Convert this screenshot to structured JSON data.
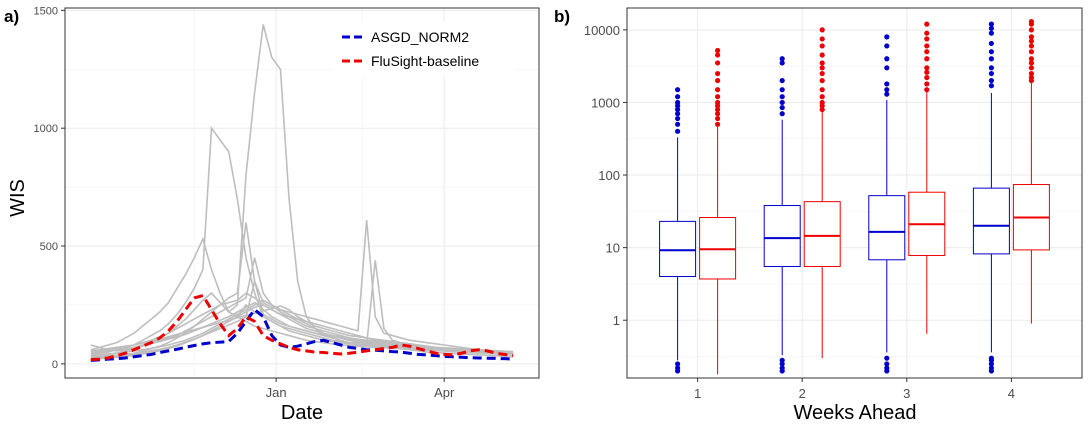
{
  "chart_data": [
    {
      "panel": "a)",
      "type": "line",
      "xlabel": "Date",
      "ylabel": "WIS",
      "x_ticks": [
        "Jan",
        "Apr"
      ],
      "y_ticks": [
        0,
        500,
        1000,
        1500
      ],
      "ylim": [
        -60,
        1510
      ],
      "grid": true,
      "legend_position": "top-right",
      "x": [
        1,
        2,
        3,
        4,
        5,
        6,
        7,
        8,
        9,
        10,
        11,
        12,
        13,
        14,
        15,
        16,
        17,
        18,
        19,
        20,
        21,
        22,
        23,
        24,
        25,
        26,
        27,
        28,
        29,
        30,
        31,
        32,
        33,
        34,
        35,
        36,
        37,
        38,
        39,
        40,
        41,
        42,
        43,
        44,
        45,
        46,
        47,
        48,
        49,
        50
      ],
      "x_tick_positions": [
        22.5,
        42
      ],
      "series": [
        {
          "name": "ASGD_NORM2",
          "color": "#0000cc",
          "style": "dashed",
          "values": [
            15,
            17,
            20,
            22,
            25,
            30,
            35,
            40,
            48,
            55,
            62,
            70,
            78,
            85,
            90,
            92,
            95,
            130,
            180,
            230,
            200,
            120,
            80,
            70,
            75,
            85,
            95,
            100,
            90,
            80,
            70,
            65,
            60,
            58,
            55,
            52,
            50,
            45,
            40,
            38,
            35,
            32,
            30,
            28,
            26,
            25,
            24,
            23,
            22,
            20
          ]
        },
        {
          "name": "FluSight-baseline",
          "color": "#ee0000",
          "style": "dashed",
          "values": [
            18,
            20,
            25,
            35,
            45,
            60,
            75,
            90,
            110,
            140,
            180,
            230,
            280,
            290,
            230,
            170,
            120,
            150,
            200,
            180,
            120,
            100,
            85,
            70,
            60,
            55,
            50,
            48,
            45,
            42,
            45,
            50,
            55,
            60,
            65,
            70,
            80,
            75,
            65,
            55,
            45,
            40,
            38,
            45,
            55,
            60,
            55,
            45,
            40,
            35
          ]
        }
      ],
      "background_series": [
        [
          60,
          70,
          80,
          90,
          110,
          130,
          160,
          190,
          220,
          260,
          320,
          380,
          450,
          530,
          400,
          300,
          220,
          200,
          180,
          160,
          150,
          140,
          130,
          120,
          110,
          100,
          95,
          90,
          85,
          80,
          78,
          75,
          72,
          70,
          68,
          66,
          64,
          62,
          60,
          58,
          56,
          55,
          54,
          53,
          52,
          51,
          50,
          49,
          48,
          47
        ],
        [
          40,
          45,
          50,
          60,
          70,
          80,
          100,
          120,
          140,
          170,
          210,
          260,
          320,
          400,
          1000,
          950,
          900,
          700,
          450,
          300,
          200,
          180,
          160,
          140,
          130,
          120,
          110,
          100,
          95,
          90,
          85,
          80,
          78,
          76,
          74,
          72,
          70,
          68,
          66,
          64,
          62,
          60,
          58,
          56,
          55,
          54,
          53,
          52,
          51,
          50
        ],
        [
          30,
          35,
          40,
          45,
          55,
          65,
          75,
          90,
          110,
          130,
          160,
          190,
          230,
          270,
          300,
          260,
          220,
          250,
          800,
          1150,
          1440,
          1300,
          1250,
          700,
          350,
          200,
          150,
          120,
          110,
          100,
          90,
          85,
          80,
          78,
          75,
          72,
          70,
          68,
          66,
          64,
          62,
          60,
          58,
          56,
          54,
          52,
          50,
          48,
          46,
          45
        ],
        [
          25,
          28,
          32,
          36,
          40,
          45,
          55,
          65,
          75,
          90,
          110,
          130,
          160,
          190,
          220,
          250,
          280,
          300,
          600,
          350,
          260,
          240,
          230,
          220,
          210,
          200,
          190,
          180,
          170,
          160,
          150,
          140,
          610,
          200,
          130,
          120,
          110,
          100,
          95,
          90,
          85,
          80,
          75,
          70,
          65,
          60,
          55,
          50,
          48,
          46
        ],
        [
          20,
          22,
          25,
          28,
          32,
          36,
          42,
          48,
          55,
          65,
          75,
          90,
          105,
          120,
          140,
          160,
          180,
          200,
          250,
          220,
          200,
          180,
          160,
          150,
          140,
          130,
          120,
          110,
          100,
          95,
          90,
          85,
          80,
          440,
          150,
          100,
          90,
          85,
          80,
          75,
          70,
          65,
          60,
          58,
          56,
          54,
          52,
          50,
          48,
          46
        ],
        [
          50,
          55,
          60,
          65,
          70,
          80,
          90,
          100,
          115,
          130,
          150,
          170,
          190,
          210,
          230,
          250,
          260,
          270,
          300,
          280,
          250,
          230,
          210,
          200,
          190,
          180,
          170,
          160,
          150,
          140,
          130,
          120,
          110,
          100,
          95,
          90,
          85,
          80,
          75,
          70,
          65,
          60,
          58,
          56,
          54,
          52,
          50,
          48,
          46,
          44
        ],
        [
          35,
          38,
          42,
          46,
          50,
          55,
          60,
          66,
          72,
          80,
          90,
          100,
          115,
          130,
          150,
          170,
          190,
          210,
          230,
          250,
          270,
          250,
          230,
          210,
          190,
          170,
          150,
          130,
          120,
          110,
          100,
          95,
          90,
          85,
          80,
          75,
          70,
          68,
          66,
          64,
          62,
          60,
          58,
          56,
          54,
          52,
          50,
          48,
          46,
          44
        ],
        [
          45,
          50,
          55,
          60,
          65,
          70,
          78,
          86,
          95,
          105,
          115,
          125,
          140,
          155,
          170,
          185,
          200,
          220,
          240,
          260,
          230,
          200,
          180,
          160,
          150,
          140,
          130,
          120,
          115,
          110,
          105,
          100,
          95,
          90,
          85,
          80,
          78,
          76,
          74,
          72,
          70,
          68,
          66,
          64,
          62,
          60,
          58,
          56,
          54,
          52
        ],
        [
          28,
          30,
          33,
          36,
          40,
          44,
          50,
          56,
          62,
          70,
          80,
          92,
          105,
          120,
          135,
          150,
          165,
          180,
          200,
          350,
          210,
          190,
          170,
          160,
          150,
          140,
          130,
          125,
          120,
          115,
          110,
          105,
          100,
          95,
          90,
          85,
          80,
          75,
          70,
          65,
          60,
          55,
          52,
          50,
          48,
          46,
          44,
          42,
          40,
          38
        ],
        [
          80,
          70,
          60,
          55,
          60,
          70,
          80,
          90,
          100,
          110,
          120,
          140,
          160,
          180,
          200,
          220,
          240,
          260,
          280,
          450,
          300,
          250,
          220,
          200,
          180,
          160,
          150,
          140,
          130,
          120,
          110,
          100,
          95,
          90,
          85,
          80,
          75,
          70,
          65,
          60,
          58,
          56,
          54,
          52,
          50,
          48,
          46,
          44,
          42,
          40
        ],
        [
          22,
          25,
          28,
          32,
          36,
          40,
          46,
          52,
          60,
          68,
          78,
          90,
          104,
          120,
          140,
          160,
          180,
          200,
          220,
          240,
          250,
          230,
          210,
          190,
          170,
          150,
          140,
          130,
          120,
          110,
          100,
          90,
          85,
          80,
          75,
          70,
          65,
          60,
          55,
          50,
          48,
          46,
          44,
          42,
          40,
          38,
          36,
          34,
          32,
          30
        ],
        [
          55,
          60,
          65,
          70,
          75,
          80,
          88,
          96,
          105,
          115,
          125,
          135,
          145,
          155,
          165,
          175,
          185,
          195,
          205,
          215,
          225,
          235,
          245,
          230,
          200,
          180,
          160,
          150,
          140,
          130,
          120,
          115,
          110,
          105,
          100,
          95,
          90,
          85,
          80,
          75,
          70,
          65,
          60,
          55,
          50,
          48,
          46,
          44,
          42,
          40
        ]
      ]
    },
    {
      "panel": "b)",
      "type": "box",
      "xlabel": "Weeks Ahead",
      "ylabel": "",
      "categories": [
        "1",
        "2",
        "3",
        "4"
      ],
      "y_scale": "log10",
      "y_ticks": [
        1,
        10,
        100,
        1000,
        10000
      ],
      "y_tick_labels": [
        "1",
        "10",
        "100",
        "1000",
        "10000"
      ],
      "ylim": [
        0.16,
        20000
      ],
      "grid": true,
      "series": [
        {
          "name": "ASGD_NORM2",
          "color": "#0000cc",
          "boxes": [
            {
              "q1": 4.0,
              "median": 9.2,
              "q3": 23,
              "whisker_low": 0.28,
              "whisker_high": 330,
              "outliers_low": [
                0.2,
                0.22,
                0.25
              ],
              "outliers_high": [
                400,
                500,
                600,
                700,
                800,
                900,
                1000,
                1200,
                1500
              ]
            },
            {
              "q1": 5.5,
              "median": 13.5,
              "q3": 38,
              "whisker_low": 0.33,
              "whisker_high": 580,
              "outliers_low": [
                0.2,
                0.22,
                0.25,
                0.28
              ],
              "outliers_high": [
                700,
                850,
                1000,
                1200,
                1500,
                2000,
                3500,
                4000
              ]
            },
            {
              "q1": 6.8,
              "median": 16.5,
              "q3": 52,
              "whisker_low": 0.36,
              "whisker_high": 1080,
              "outliers_low": [
                0.2,
                0.22,
                0.25,
                0.3
              ],
              "outliers_high": [
                1300,
                1500,
                1800,
                3000,
                4000,
                6000,
                8000
              ]
            },
            {
              "q1": 8.2,
              "median": 20,
              "q3": 66,
              "whisker_low": 0.36,
              "whisker_high": 1350,
              "outliers_low": [
                0.2,
                0.22,
                0.25,
                0.28,
                0.3
              ],
              "outliers_high": [
                1700,
                2000,
                2500,
                3000,
                4000,
                5000,
                6500,
                9000,
                10500,
                12000
              ]
            }
          ]
        },
        {
          "name": "FluSight-baseline",
          "color": "#ee0000",
          "boxes": [
            {
              "q1": 3.7,
              "median": 9.5,
              "q3": 26,
              "whisker_low": 0.18,
              "whisker_high": 460,
              "outliers_low": [],
              "outliers_high": [
                500,
                600,
                700,
                800,
                900,
                1000,
                1200,
                1500,
                2000,
                2500,
                3500,
                4500,
                5200
              ]
            },
            {
              "q1": 5.5,
              "median": 14.5,
              "q3": 43,
              "whisker_low": 0.3,
              "whisker_high": 760,
              "outliers_low": [],
              "outliers_high": [
                800,
                900,
                1000,
                1200,
                1500,
                2000,
                2500,
                3000,
                3500,
                4500,
                6000,
                7500,
                10000
              ]
            },
            {
              "q1": 7.8,
              "median": 21,
              "q3": 58,
              "whisker_low": 0.65,
              "whisker_high": 1400,
              "outliers_low": [],
              "outliers_high": [
                1500,
                1800,
                2200,
                2600,
                3000,
                4000,
                5000,
                6000,
                7500,
                9000,
                12000
              ]
            },
            {
              "q1": 9.3,
              "median": 26,
              "q3": 74,
              "whisker_low": 0.9,
              "whisker_high": 1900,
              "outliers_low": [],
              "outliers_high": [
                2000,
                2200,
                2500,
                3000,
                3500,
                4000,
                5000,
                6000,
                7000,
                8000,
                10000,
                12000,
                13000
              ]
            }
          ]
        }
      ]
    }
  ]
}
